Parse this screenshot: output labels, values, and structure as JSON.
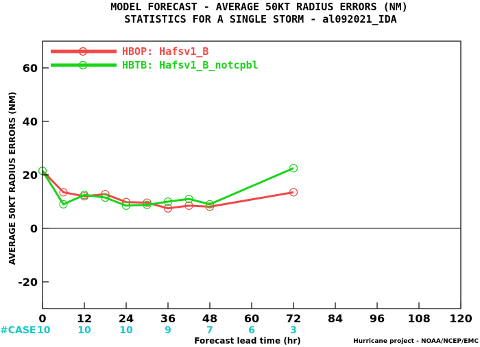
{
  "chart_data": {
    "type": "line",
    "title": "MODEL FORECAST - AVERAGE 50KT RADIUS ERRORS (NM)",
    "subtitle": "STATISTICS FOR A SINGLE STORM - al092021_IDA",
    "xlabel": "Forecast lead time (hr)",
    "ylabel": "AVERAGE 50KT RADIUS ERRORS (NM)",
    "xlim": [
      0,
      120
    ],
    "ylim": [
      -30,
      70
    ],
    "xticks": [
      0,
      12,
      24,
      36,
      48,
      60,
      72,
      84,
      96,
      108,
      120
    ],
    "yticks": [
      -20,
      0,
      20,
      40,
      60
    ],
    "zero_line": true,
    "grid": false,
    "legend_position": "top-left",
    "series": [
      {
        "name": "HBOP: Hafsv1_B",
        "color": "#f04848",
        "x": [
          0,
          6,
          12,
          18,
          24,
          30,
          36,
          42,
          48,
          72
        ],
        "y": [
          21.5,
          13.5,
          12.0,
          12.8,
          9.8,
          9.6,
          7.5,
          8.5,
          8.1,
          13.5
        ]
      },
      {
        "name": "HBTB: Hafsv1_B_notcpbl",
        "color": "#19d419",
        "x": [
          0,
          6,
          12,
          18,
          24,
          30,
          36,
          42,
          48,
          72
        ],
        "y": [
          21.5,
          9.0,
          12.5,
          11.5,
          8.5,
          8.8,
          10.0,
          11.0,
          9.0,
          22.5
        ]
      }
    ],
    "case_label": "#CASE",
    "case_counts": [
      {
        "x": 0,
        "n": "10"
      },
      {
        "x": 12,
        "n": "10"
      },
      {
        "x": 24,
        "n": "10"
      },
      {
        "x": 36,
        "n": "9"
      },
      {
        "x": 48,
        "n": "7"
      },
      {
        "x": 60,
        "n": "6"
      },
      {
        "x": 72,
        "n": "3"
      }
    ],
    "case_color": "#19c8c8",
    "credit": "Hurricane project - NOAA/NCEP/EMC"
  }
}
